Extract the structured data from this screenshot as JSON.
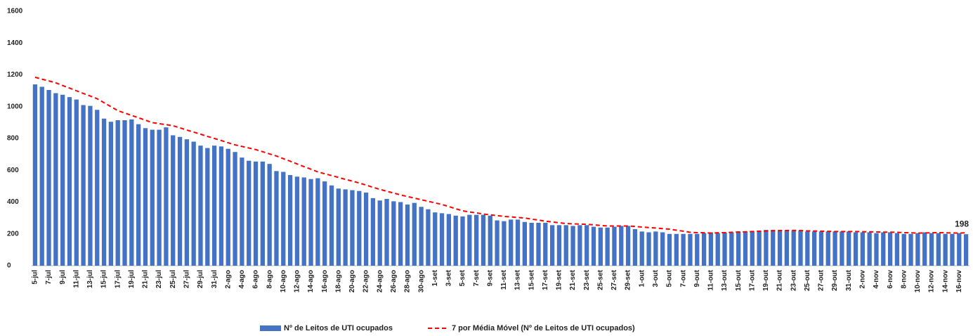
{
  "chart_data": {
    "type": "bar",
    "categories": [
      "5-jul",
      null,
      "7-jul",
      null,
      "9-jul",
      null,
      "11-jul",
      null,
      "13-jul",
      null,
      "15-jul",
      null,
      "17-jul",
      null,
      "19-jul",
      null,
      "21-jul",
      null,
      "23-jul",
      null,
      "25-jul",
      null,
      "27-jul",
      null,
      "29-jul",
      null,
      "31-jul",
      null,
      "2-ago",
      null,
      "4-ago",
      null,
      "6-ago",
      null,
      "8-ago",
      null,
      "10-ago",
      null,
      "12-ago",
      null,
      "14-ago",
      null,
      "16-ago",
      null,
      "18-ago",
      null,
      "20-ago",
      null,
      "22-ago",
      null,
      "24-ago",
      null,
      "26-ago",
      null,
      "28-ago",
      null,
      "30-ago",
      null,
      "1-set",
      null,
      "3-set",
      null,
      "5-set",
      null,
      "7-set",
      null,
      "9-set",
      null,
      "11-set",
      null,
      "13-set",
      null,
      "15-set",
      null,
      "17-set",
      null,
      "19-set",
      null,
      "21-set",
      null,
      "23-set",
      null,
      "25-set",
      null,
      "27-set",
      null,
      "29-set",
      null,
      "1-out",
      null,
      "3-out",
      null,
      "5-out",
      null,
      "7-out",
      null,
      "9-out",
      null,
      "11-out",
      null,
      "13-out",
      null,
      "15-out",
      null,
      "17-out",
      null,
      "19-out",
      null,
      "21-out",
      null,
      "23-out",
      null,
      "25-out",
      null,
      "27-out",
      null,
      "29-out",
      null,
      "31-out",
      null,
      "2-nov",
      null,
      "4-nov",
      null,
      "6-nov",
      null,
      "8-nov",
      null,
      "10-nov",
      null,
      "12-nov",
      null,
      "14-nov",
      null,
      "16-nov",
      null
    ],
    "series": [
      {
        "name": "Nº de Leitos de UTI ocupados",
        "type": "bar",
        "color": "#4472c4",
        "values": [
          1140,
          1125,
          1105,
          1085,
          1075,
          1060,
          1045,
          1010,
          1005,
          980,
          925,
          905,
          915,
          915,
          920,
          890,
          865,
          855,
          855,
          870,
          820,
          810,
          795,
          780,
          755,
          740,
          755,
          750,
          735,
          715,
          680,
          660,
          655,
          655,
          640,
          595,
          590,
          570,
          560,
          555,
          545,
          550,
          530,
          505,
          485,
          480,
          475,
          470,
          460,
          425,
          410,
          420,
          405,
          400,
          385,
          395,
          370,
          355,
          335,
          330,
          325,
          315,
          310,
          320,
          320,
          320,
          315,
          285,
          280,
          290,
          290,
          275,
          270,
          270,
          270,
          255,
          255,
          255,
          250,
          255,
          255,
          245,
          240,
          240,
          245,
          250,
          250,
          230,
          215,
          210,
          215,
          210,
          200,
          200,
          200,
          200,
          200,
          205,
          210,
          205,
          210,
          210,
          215,
          215,
          215,
          220,
          225,
          225,
          220,
          220,
          220,
          220,
          215,
          215,
          215,
          215,
          215,
          215,
          215,
          210,
          210,
          210,
          205,
          210,
          210,
          205,
          200,
          200,
          205,
          210,
          205,
          205,
          200,
          200,
          205,
          198
        ]
      },
      {
        "name": "7 por Média Móvel (Nº de Leitos de UTI ocupados)",
        "type": "line",
        "color": "#ff0000",
        "values": [
          1185,
          1173,
          1162,
          1150,
          1133,
          1117,
          1100,
          1083,
          1067,
          1050,
          1025,
          1000,
          975,
          960,
          945,
          930,
          915,
          900,
          893,
          887,
          880,
          867,
          853,
          840,
          827,
          813,
          800,
          787,
          773,
          760,
          750,
          740,
          730,
          717,
          703,
          690,
          673,
          657,
          640,
          623,
          607,
          590,
          578,
          567,
          555,
          543,
          532,
          520,
          507,
          493,
          480,
          468,
          457,
          445,
          435,
          425,
          415,
          405,
          395,
          385,
          372,
          358,
          345,
          338,
          332,
          325,
          320,
          315,
          310,
          307,
          303,
          300,
          293,
          287,
          280,
          275,
          270,
          265,
          263,
          262,
          260,
          257,
          253,
          250,
          250,
          250,
          250,
          247,
          243,
          240,
          237,
          233,
          230,
          223,
          217,
          210,
          208,
          207,
          205,
          207,
          208,
          210,
          212,
          213,
          215,
          217,
          218,
          220,
          221,
          221,
          222,
          221,
          219,
          218,
          217,
          216,
          215,
          215,
          215,
          215,
          214,
          213,
          212,
          211,
          211,
          210,
          208,
          207,
          205,
          206,
          207,
          208,
          207,
          206,
          205,
          207
        ]
      }
    ],
    "ylim": [
      0,
      1600
    ],
    "yticks": [
      0,
      200,
      400,
      600,
      800,
      1000,
      1200,
      1400,
      1600
    ],
    "grid": false
  }
}
